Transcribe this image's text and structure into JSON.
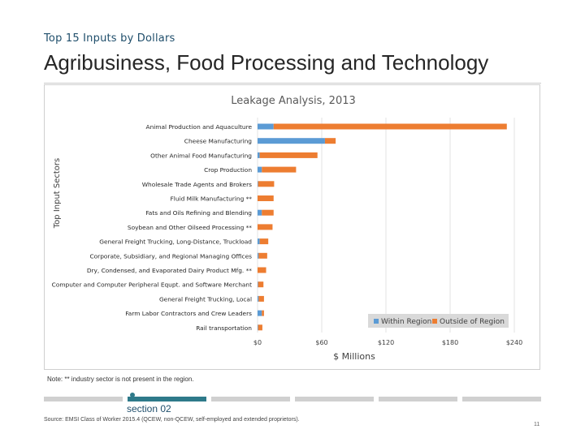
{
  "header": {
    "kicker": "Top 15 Inputs by Dollars",
    "title": "Agribusiness, Food Processing and Technology"
  },
  "footer": {
    "note": "Note: ** industry sector is not present in the region.",
    "section": "section 02",
    "source": "Source: EMSI Class of Worker 2015.4 (QCEW, non-QCEW, self-employed and extended proprietors).",
    "page": "11"
  },
  "colors": {
    "within": "#5b9bd5",
    "outside": "#ed7d31"
  },
  "chart_data": {
    "type": "bar",
    "orientation": "horizontal",
    "stacked": true,
    "title": "Leakage Analysis, 2013",
    "xlabel": "$ Millions",
    "ylabel": "Top Input Sectors",
    "xlim": [
      0,
      240
    ],
    "xticks": [
      "$0",
      "$60",
      "$120",
      "$180",
      "$240"
    ],
    "legend_position": "bottom-right",
    "categories": [
      "Animal Production and Aquaculture",
      "Cheese Manufacturing",
      "Other Animal Food Manufacturing",
      "Crop Production",
      "Wholesale Trade Agents and Brokers",
      "Fluid Milk Manufacturing **",
      "Fats and Oils Refining and Blending",
      "Soybean and Other Oilseed Processing **",
      "General Freight Trucking, Long-Distance, Truckload",
      "Corporate, Subsidiary, and Regional Managing Offices",
      "Dry, Condensed, and Evaporated Dairy Product Mfg. **",
      "Computer and Computer Peripheral Equpt. and Software Merchant",
      "General Freight Trucking, Local",
      "Farm Labor Contractors and Crew Leaders",
      "Rail transportation"
    ],
    "series": [
      {
        "name": "Within Region",
        "values": [
          15,
          63,
          2,
          4,
          0.5,
          0,
          4,
          0,
          2,
          1,
          0,
          0.5,
          1,
          4,
          0.5
        ]
      },
      {
        "name": "Outside of Region",
        "values": [
          218,
          10,
          54,
          32,
          15,
          15,
          11,
          14,
          8,
          8,
          8,
          5,
          5,
          2,
          4
        ]
      }
    ]
  }
}
